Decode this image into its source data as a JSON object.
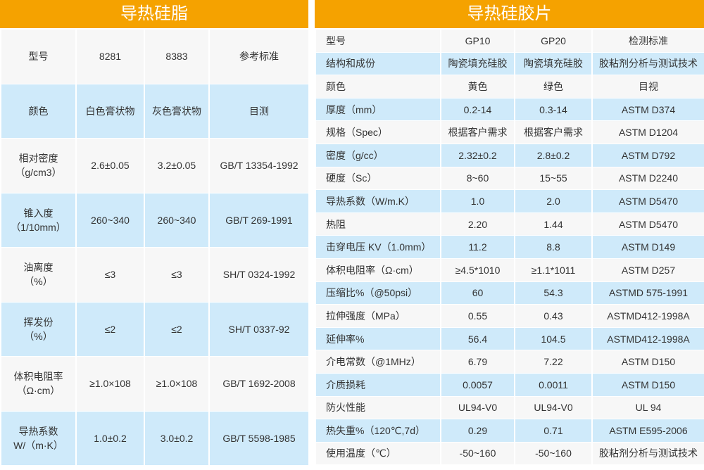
{
  "colors": {
    "header": "#f5a200",
    "row_light": "#f7f7f7",
    "row_blue": "#cfeafa"
  },
  "left": {
    "title": "导热硅脂",
    "rows": [
      [
        "型号",
        "8281",
        "8383",
        "参考标准"
      ],
      [
        "颜色",
        "白色膏状物",
        "灰色膏状物",
        "目测"
      ],
      [
        "相对密度\n（g/cm3）",
        "2.6±0.05",
        "3.2±0.05",
        "GB/T 13354-1992"
      ],
      [
        "锥入度\n（1/10mm）",
        "260~340",
        "260~340",
        "GB/T 269-1991"
      ],
      [
        "油离度\n（%）",
        "≤3",
        "≤3",
        "SH/T 0324-1992"
      ],
      [
        "挥发份\n（%）",
        "≤2",
        "≤2",
        "SH/T 0337-92"
      ],
      [
        "体积电阻率\n（Ω·cm）",
        "≥1.0×108",
        "≥1.0×108",
        "GB/T 1692-2008"
      ],
      [
        "导热系数\nW/（m·K）",
        "1.0±0.2",
        "3.0±0.2",
        "GB/T 5598-1985"
      ]
    ]
  },
  "right": {
    "title": "导热硅胶片",
    "rows": [
      [
        "型号",
        "GP10",
        "GP20",
        "检测标准"
      ],
      [
        "结构和成份",
        "陶瓷填充硅胶",
        "陶瓷填充硅胶",
        "胶粘剂分析与测试技术"
      ],
      [
        "颜色",
        "黄色",
        "绿色",
        "目视"
      ],
      [
        "厚度（mm）",
        "0.2-14",
        "0.3-14",
        "ASTM D374"
      ],
      [
        "规格（Spec）",
        "根据客户需求",
        "根据客户需求",
        "ASTM D1204"
      ],
      [
        "密度（g/cc）",
        "2.32±0.2",
        "2.8±0.2",
        "ASTM D792"
      ],
      [
        "硬度（Sc）",
        "8~60",
        "15~55",
        "ASTM D2240"
      ],
      [
        "导热系数（W/m.K）",
        "1.0",
        "2.0",
        "ASTM D5470"
      ],
      [
        "热阻",
        "2.20",
        "1.44",
        "ASTM D5470"
      ],
      [
        "击穿电压 KV（1.0mm）",
        "11.2",
        "8.8",
        "ASTM D149"
      ],
      [
        "体积电阻率（Ω·cm）",
        "≥4.5*1010",
        "≥1.1*1011",
        "ASTM D257"
      ],
      [
        "压缩比%（@50psi）",
        "60",
        "54.3",
        "ASTMD 575-1991"
      ],
      [
        "拉伸强度（MPa）",
        "0.55",
        "0.43",
        "ASTMD412-1998A"
      ],
      [
        "延伸率%",
        "56.4",
        "104.5",
        "ASTMD412-1998A"
      ],
      [
        "介电常数（@1MHz）",
        "6.79",
        "7.22",
        "ASTM D150"
      ],
      [
        "介质损耗",
        "0.0057",
        "0.0011",
        "ASTM D150"
      ],
      [
        "防火性能",
        "UL94-V0",
        "UL94-V0",
        "UL 94"
      ],
      [
        "热失重%（120℃,7d）",
        "0.29",
        "0.71",
        "ASTM E595-2006"
      ],
      [
        "使用温度（℃）",
        "-50~160",
        "-50~160",
        "胶粘剂分析与测试技术"
      ]
    ]
  }
}
